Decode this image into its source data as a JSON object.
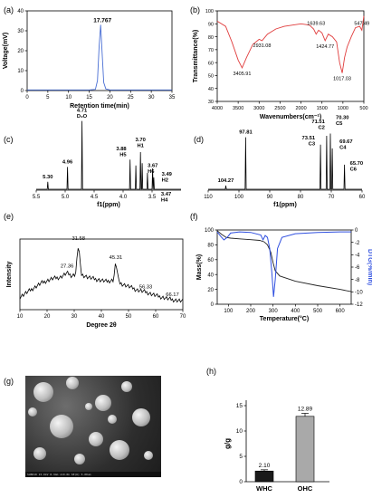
{
  "panels": {
    "a": {
      "label": "(a)",
      "chart_data": {
        "type": "line",
        "xlabel": "Retention time(min)",
        "ylabel": "Voltage(mV)",
        "xlim": [
          0,
          35
        ],
        "ylim": [
          0,
          40
        ],
        "xticks": [
          0,
          5,
          10,
          15,
          20,
          25,
          30,
          35
        ],
        "yticks": [
          0,
          10,
          20,
          30,
          40
        ],
        "peak_label": "17.767",
        "series": [
          {
            "x": [
              0,
              15,
              16.5,
              17,
              17.4,
              17.767,
              18.1,
              18.5,
              19,
              20,
              35
            ],
            "y": [
              0.3,
              0.3,
              0.6,
              5,
              22,
              33,
              20,
              4,
              0.8,
              0.3,
              0.3
            ]
          }
        ],
        "color": "#4a6fd4"
      }
    },
    "b": {
      "label": "(b)",
      "chart_data": {
        "type": "line",
        "xlabel": "Wavenumbers(cm⁻¹)",
        "ylabel": "Transmittance(%)",
        "xlim": [
          4000,
          500
        ],
        "ylim": [
          30,
          100
        ],
        "xticks": [
          4000,
          3500,
          3000,
          2500,
          2000,
          1500,
          1000,
          500
        ],
        "yticks": [
          30,
          40,
          50,
          60,
          70,
          80,
          90,
          100
        ],
        "annotations": [
          "3405.91",
          "2931.08",
          "1639.63",
          "1424.77",
          "1017.03",
          "547.49"
        ],
        "series": [
          {
            "x": [
              4000,
              3800,
              3650,
              3500,
              3405.91,
              3300,
              3150,
              3000,
              2931.08,
              2800,
              2600,
              2400,
              2200,
              2000,
              1800,
              1700,
              1639.63,
              1580,
              1500,
              1424.77,
              1350,
              1250,
              1150,
              1080,
              1017.03,
              960,
              900,
              800,
              700,
              600,
              547.49,
              500
            ],
            "y": [
              92,
              88,
              76,
              62,
              56,
              64,
              74,
              78,
              77,
              82,
              86,
              88,
              89,
              90,
              89,
              86,
              82,
              85,
              83,
              77,
              82,
              80,
              76,
              60,
              52,
              64,
              72,
              80,
              87,
              88,
              85,
              96
            ]
          }
        ],
        "color": "#e03c3c"
      }
    },
    "c": {
      "label": "(c)",
      "chart_data": {
        "type": "line",
        "xlabel": "f1(ppm)",
        "xlim": [
          5.5,
          3.0
        ],
        "xticks": [
          5.5,
          5.0,
          4.5,
          4.0,
          3.5
        ],
        "xtick_labels": [
          "5.5",
          "5.0",
          "4.5",
          "4.0",
          "3.5"
        ],
        "peaks": [
          {
            "x": 5.3,
            "h": 0.1,
            "label": "5.30"
          },
          {
            "x": 4.96,
            "h": 0.3,
            "label": "4.96"
          },
          {
            "x": 4.71,
            "h": 0.92,
            "label": "4.71\nD₂O"
          },
          {
            "x": 3.88,
            "h": 0.4,
            "label": "3.88\nH5"
          },
          {
            "x": 3.78,
            "h": 0.32,
            "label": ""
          },
          {
            "x": 3.7,
            "h": 0.5,
            "label": "3.70\nH1"
          },
          {
            "x": 3.67,
            "h": 0.35,
            "label": "3.67\nH6"
          },
          {
            "x": 3.58,
            "h": 0.22,
            "label": ""
          },
          {
            "x": 3.49,
            "h": 0.28,
            "label": "3.49\nH2"
          },
          {
            "x": 3.47,
            "h": 0.16,
            "label": "3.47\nH4"
          }
        ]
      }
    },
    "d": {
      "label": "(d)",
      "chart_data": {
        "type": "line",
        "xlabel": "f1(ppm)",
        "xlim": [
          110,
          60
        ],
        "xticks": [
          110,
          100,
          90,
          80,
          70,
          60
        ],
        "peaks": [
          {
            "x": 104.27,
            "h": 0.05,
            "label": "104.27"
          },
          {
            "x": 97.81,
            "h": 0.7,
            "label": "97.81"
          },
          {
            "x": 73.51,
            "h": 0.6,
            "label": "73.51\nC3"
          },
          {
            "x": 71.51,
            "h": 0.72,
            "label": "71.51\nC2"
          },
          {
            "x": 70.3,
            "h": 0.75,
            "label": "70.30\nC5"
          },
          {
            "x": 69.67,
            "h": 0.55,
            "label": "69.67\nC4"
          },
          {
            "x": 65.7,
            "h": 0.33,
            "label": "65.70\nC6"
          }
        ]
      }
    },
    "e": {
      "label": "(e)",
      "chart_data": {
        "type": "line",
        "xlabel": "Degree 2θ",
        "ylabel": "Intensity",
        "xlim": [
          10,
          70
        ],
        "xticks": [
          10,
          20,
          30,
          40,
          50,
          60,
          70
        ],
        "annotations": [
          "31.58",
          "27.36",
          "45.31",
          "56.33",
          "66.17"
        ],
        "series": [
          {
            "x": [
              10,
              14,
              18,
              22,
              25,
              27.36,
              29,
              30.5,
              31.58,
              32.5,
              35,
              38,
              42,
              44.5,
              45.31,
              46.5,
              50,
              53,
              56.33,
              60,
              63,
              66.17,
              70
            ],
            "y": [
              0.18,
              0.28,
              0.38,
              0.44,
              0.46,
              0.52,
              0.48,
              0.5,
              0.95,
              0.5,
              0.46,
              0.43,
              0.4,
              0.42,
              0.68,
              0.38,
              0.33,
              0.28,
              0.25,
              0.2,
              0.17,
              0.14,
              0.12
            ]
          }
        ]
      }
    },
    "f": {
      "label": "(f)",
      "chart_data": {
        "type": "line",
        "xlabel": "Temperature(°C)",
        "ylabel": "Mass(%)",
        "ylabel_right": "DTG(%/min)",
        "xlim": [
          50,
          650
        ],
        "ylim": [
          0,
          100
        ],
        "ylim_right": [
          -12,
          0
        ],
        "xticks": [
          100,
          200,
          300,
          400,
          500,
          600
        ],
        "yticks": [
          0,
          20,
          40,
          60,
          80,
          100
        ],
        "yticks_right": [
          0,
          -2,
          -4,
          -6,
          -8,
          -10,
          -12
        ],
        "series": [
          {
            "name": "",
            "axis": "left",
            "color": "#222222",
            "x": [
              50,
              70,
              90,
              110,
              150,
              200,
              240,
              260,
              275,
              290,
              300,
              310,
              330,
              400,
              500,
              600,
              650
            ],
            "y": [
              99,
              94,
              90,
              89,
              88,
              87,
              86,
              84,
              80,
              70,
              56,
              45,
              38,
              31,
              25,
              20,
              17
            ]
          },
          {
            "name": "",
            "axis": "right",
            "color": "#3050e0",
            "x": [
              50,
              65,
              80,
              95,
              110,
              150,
              200,
              245,
              255,
              265,
              275,
              285,
              295,
              302,
              310,
              320,
              340,
              400,
              500,
              600,
              650
            ],
            "y": [
              -0.3,
              -1.0,
              -1.6,
              -1.2,
              -0.5,
              -0.3,
              -0.4,
              -0.8,
              -1.6,
              -0.9,
              -1.2,
              -3,
              -7,
              -10.8,
              -8,
              -3,
              -1.2,
              -0.6,
              -0.4,
              -0.3,
              -0.3
            ]
          }
        ]
      }
    },
    "g": {
      "label": "(g)",
      "scalebar_text": "SU8010 15.0kV 8.3mm x10.0k SE(U)        5.00um"
    },
    "h": {
      "label": "(h)",
      "chart_data": {
        "type": "bar",
        "categories": [
          "WHC",
          "OHC"
        ],
        "values": [
          2.1,
          12.89
        ],
        "errors": [
          0.25,
          0.6
        ],
        "value_labels": [
          "2.10",
          "12.89"
        ],
        "colors": [
          "#1a1a1a",
          "#a9a9a9"
        ],
        "ylabel": "g/g",
        "ylim": [
          0,
          15
        ],
        "yticks": [
          0,
          5,
          10,
          15
        ]
      }
    }
  }
}
